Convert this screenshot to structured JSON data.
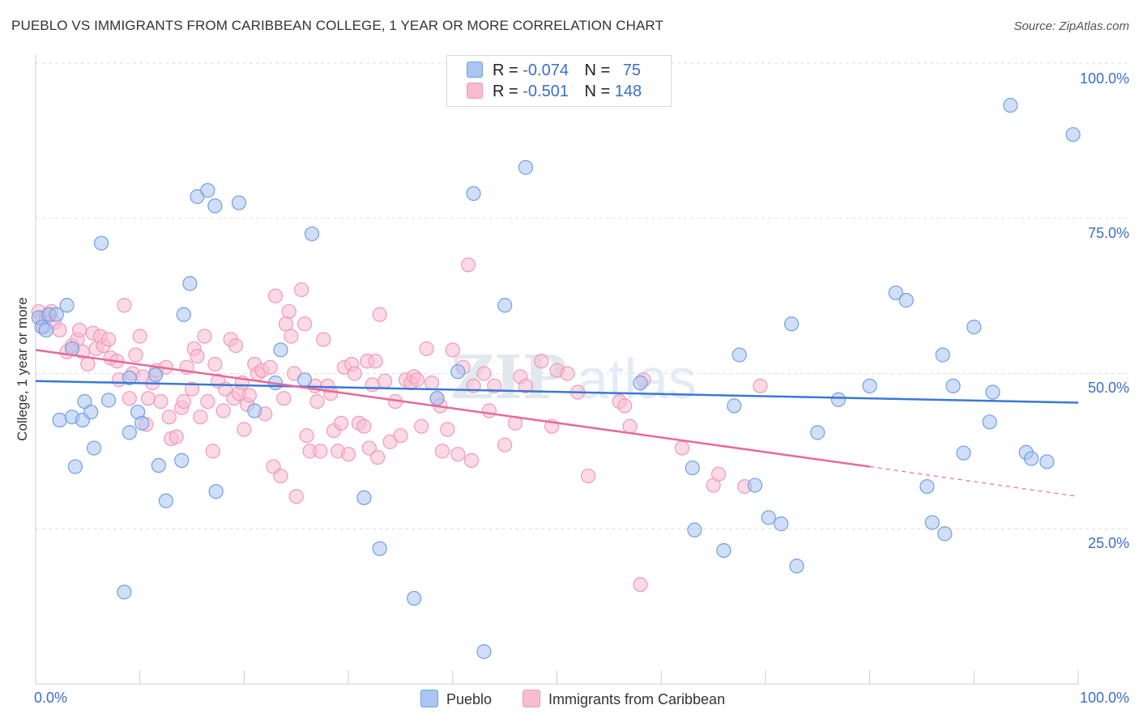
{
  "title": "PUEBLO VS IMMIGRANTS FROM CARIBBEAN COLLEGE, 1 YEAR OR MORE CORRELATION CHART",
  "source": "Source: ZipAtlas.com",
  "legend": {
    "r_label": "R =",
    "n_label": "N =",
    "rows": [
      {
        "r": "-0.074",
        "n": "75",
        "color": "#a9c5f0"
      },
      {
        "r": "-0.501",
        "n": "148",
        "color": "#f7bcd0"
      }
    ]
  },
  "watermark": {
    "zip": "ZIP",
    "atlas": "atlas"
  },
  "chart_data": {
    "type": "scatter",
    "title": "PUEBLO VS IMMIGRANTS FROM CARIBBEAN COLLEGE, 1 YEAR OR MORE CORRELATION CHART",
    "xlabel": "",
    "ylabel": "College, 1 year or more",
    "xlim": [
      0,
      100
    ],
    "ylim": [
      0,
      100
    ],
    "x_tick_labels": [
      "0.0%",
      "100.0%"
    ],
    "y_tick_labels": [
      "25.0%",
      "50.0%",
      "75.0%",
      "100.0%"
    ],
    "grid": true,
    "legend_position": "top-center",
    "series": [
      {
        "name": "Pueblo",
        "color": "#6fa0e6",
        "fill": "#a9c5f0",
        "trend": {
          "x": [
            0,
            100
          ],
          "y": [
            48.8,
            45.3
          ]
        },
        "points": [
          [
            0.3,
            59
          ],
          [
            0.6,
            57.5
          ],
          [
            1,
            57
          ],
          [
            1.3,
            59.5
          ],
          [
            2,
            59.5
          ],
          [
            3,
            61
          ],
          [
            3.5,
            54
          ],
          [
            2.3,
            42.5
          ],
          [
            3.5,
            43
          ],
          [
            3.8,
            35
          ],
          [
            4.5,
            42.5
          ],
          [
            4.7,
            45.5
          ],
          [
            5.3,
            43.8
          ],
          [
            5.6,
            38
          ],
          [
            6.3,
            71
          ],
          [
            7,
            45.7
          ],
          [
            8.5,
            14.8
          ],
          [
            9,
            49.3
          ],
          [
            9,
            40.5
          ],
          [
            9.8,
            43.8
          ],
          [
            10.2,
            42
          ],
          [
            11.5,
            49.8
          ],
          [
            11.8,
            35.2
          ],
          [
            12.5,
            29.5
          ],
          [
            14,
            36
          ],
          [
            14.2,
            59.5
          ],
          [
            14.8,
            64.5
          ],
          [
            15.5,
            78.5
          ],
          [
            16.5,
            79.5
          ],
          [
            17.2,
            77
          ],
          [
            17.3,
            31
          ],
          [
            19.5,
            77.5
          ],
          [
            21,
            44
          ],
          [
            23,
            48.5
          ],
          [
            23.5,
            53.8
          ],
          [
            25.8,
            49
          ],
          [
            26.5,
            72.5
          ],
          [
            31.5,
            30
          ],
          [
            33,
            21.8
          ],
          [
            36.3,
            13.8
          ],
          [
            38.5,
            46
          ],
          [
            40.5,
            50.3
          ],
          [
            42,
            79
          ],
          [
            43,
            5.2
          ],
          [
            45,
            61
          ],
          [
            47,
            83.2
          ],
          [
            58,
            48.5
          ],
          [
            63,
            34.8
          ],
          [
            63.2,
            24.8
          ],
          [
            66,
            21.5
          ],
          [
            67,
            44.8
          ],
          [
            67.5,
            53
          ],
          [
            69,
            32
          ],
          [
            70.3,
            26.8
          ],
          [
            71.5,
            25.8
          ],
          [
            72.5,
            58
          ],
          [
            73,
            19
          ],
          [
            75,
            40.5
          ],
          [
            77,
            45.8
          ],
          [
            80,
            48
          ],
          [
            82.5,
            63
          ],
          [
            83.5,
            61.8
          ],
          [
            85.5,
            31.8
          ],
          [
            86,
            26
          ],
          [
            87,
            53
          ],
          [
            87.2,
            24.2
          ],
          [
            88,
            48
          ],
          [
            89,
            37.2
          ],
          [
            90,
            57.5
          ],
          [
            91.5,
            42.2
          ],
          [
            91.8,
            47
          ],
          [
            93.5,
            93.2
          ],
          [
            95,
            37.3
          ],
          [
            95.5,
            36.3
          ],
          [
            97,
            35.8
          ],
          [
            99.5,
            88.5
          ]
        ]
      },
      {
        "name": "Immigrants from Caribbean",
        "color": "#f099b8",
        "fill": "#f7bcd0",
        "trend": {
          "x": [
            0,
            80
          ],
          "y": [
            53.8,
            35
          ]
        },
        "trend_dashed": {
          "x": [
            80,
            100
          ],
          "y": [
            35,
            30.2
          ]
        },
        "points": [
          [
            0.3,
            60
          ],
          [
            0.6,
            58.8
          ],
          [
            0.8,
            57.5
          ],
          [
            1,
            59
          ],
          [
            1.2,
            59.5
          ],
          [
            1.5,
            60
          ],
          [
            1.8,
            58.2
          ],
          [
            2.3,
            57
          ],
          [
            3,
            53.5
          ],
          [
            3.5,
            54.5
          ],
          [
            4,
            55.5
          ],
          [
            4.5,
            53.5
          ],
          [
            4.2,
            57
          ],
          [
            5,
            51.5
          ],
          [
            5.5,
            56.5
          ],
          [
            5.8,
            54
          ],
          [
            6.2,
            56
          ],
          [
            6.5,
            54.5
          ],
          [
            7,
            55.5
          ],
          [
            7.2,
            52.5
          ],
          [
            7.8,
            52
          ],
          [
            8,
            49
          ],
          [
            8.5,
            61
          ],
          [
            9,
            46
          ],
          [
            9.3,
            50
          ],
          [
            9.6,
            53
          ],
          [
            10,
            56
          ],
          [
            10.3,
            49.5
          ],
          [
            10.6,
            41.8
          ],
          [
            10.8,
            46
          ],
          [
            11.2,
            48.5
          ],
          [
            11.6,
            50.5
          ],
          [
            12,
            45.5
          ],
          [
            12.5,
            51
          ],
          [
            12.8,
            43
          ],
          [
            13,
            39.5
          ],
          [
            13.5,
            39.8
          ],
          [
            14,
            44.5
          ],
          [
            14.2,
            45.5
          ],
          [
            14.5,
            51
          ],
          [
            15,
            47.5
          ],
          [
            15.2,
            54
          ],
          [
            15.5,
            52.8
          ],
          [
            15.8,
            43
          ],
          [
            16.2,
            56
          ],
          [
            16.5,
            45.5
          ],
          [
            17,
            37.5
          ],
          [
            17.2,
            51.5
          ],
          [
            17.5,
            48.8
          ],
          [
            18,
            44
          ],
          [
            18.2,
            47.5
          ],
          [
            18.7,
            55.5
          ],
          [
            19,
            46
          ],
          [
            19.2,
            54.5
          ],
          [
            19.5,
            46.8
          ],
          [
            19.8,
            48.5
          ],
          [
            20,
            41
          ],
          [
            20.3,
            45
          ],
          [
            20.5,
            46.5
          ],
          [
            21,
            51.5
          ],
          [
            21.3,
            50
          ],
          [
            21.7,
            50.5
          ],
          [
            22,
            43.5
          ],
          [
            22.5,
            51
          ],
          [
            22.8,
            35
          ],
          [
            23,
            62.5
          ],
          [
            23.5,
            33.5
          ],
          [
            23.8,
            46
          ],
          [
            24,
            58
          ],
          [
            24.3,
            60
          ],
          [
            24.5,
            56
          ],
          [
            24.8,
            50
          ],
          [
            25,
            30.2
          ],
          [
            25.5,
            63.5
          ],
          [
            25.8,
            58
          ],
          [
            26,
            40
          ],
          [
            26.3,
            37.5
          ],
          [
            26.8,
            48
          ],
          [
            27,
            45.5
          ],
          [
            27.3,
            37.5
          ],
          [
            27.6,
            55.5
          ],
          [
            28,
            48
          ],
          [
            28.3,
            46.8
          ],
          [
            28.6,
            40.8
          ],
          [
            29,
            37.5
          ],
          [
            29.3,
            42
          ],
          [
            29.6,
            51
          ],
          [
            30,
            37
          ],
          [
            30.3,
            51.5
          ],
          [
            30.6,
            50
          ],
          [
            31,
            42
          ],
          [
            31.5,
            41.5
          ],
          [
            31.8,
            52
          ],
          [
            32,
            38
          ],
          [
            32.3,
            48.2
          ],
          [
            32.6,
            52
          ],
          [
            32.8,
            36.5
          ],
          [
            33,
            59.5
          ],
          [
            33.5,
            48.8
          ],
          [
            34,
            39
          ],
          [
            34.5,
            45.5
          ],
          [
            35,
            40
          ],
          [
            35.5,
            49
          ],
          [
            36,
            48.5
          ],
          [
            36.3,
            49.5
          ],
          [
            36.6,
            49
          ],
          [
            37,
            41.5
          ],
          [
            37.5,
            54
          ],
          [
            38,
            48.5
          ],
          [
            38.5,
            46
          ],
          [
            38.8,
            44.8
          ],
          [
            39,
            37.5
          ],
          [
            39.5,
            41
          ],
          [
            40,
            53.8
          ],
          [
            40.5,
            37
          ],
          [
            41,
            51
          ],
          [
            41.5,
            67.5
          ],
          [
            41.8,
            36
          ],
          [
            42,
            48
          ],
          [
            43,
            50
          ],
          [
            43.5,
            44
          ],
          [
            44,
            48
          ],
          [
            45,
            38.5
          ],
          [
            46,
            42
          ],
          [
            46.5,
            49.5
          ],
          [
            47,
            48
          ],
          [
            48.5,
            52
          ],
          [
            49.5,
            41.5
          ],
          [
            50,
            50.5
          ],
          [
            51,
            50
          ],
          [
            52,
            47
          ],
          [
            53,
            33.5
          ],
          [
            56,
            45.5
          ],
          [
            56.5,
            44.8
          ],
          [
            57,
            41.5
          ],
          [
            58,
            16
          ],
          [
            58.3,
            49
          ],
          [
            62,
            38
          ],
          [
            65,
            32
          ],
          [
            65.5,
            33.8
          ],
          [
            68,
            31.8
          ],
          [
            69.5,
            48
          ]
        ]
      }
    ]
  },
  "bottom_legend": [
    {
      "label": "Pueblo",
      "color": "#a9c5f0"
    },
    {
      "label": "Immigrants from Caribbean",
      "color": "#f7bcd0"
    }
  ]
}
